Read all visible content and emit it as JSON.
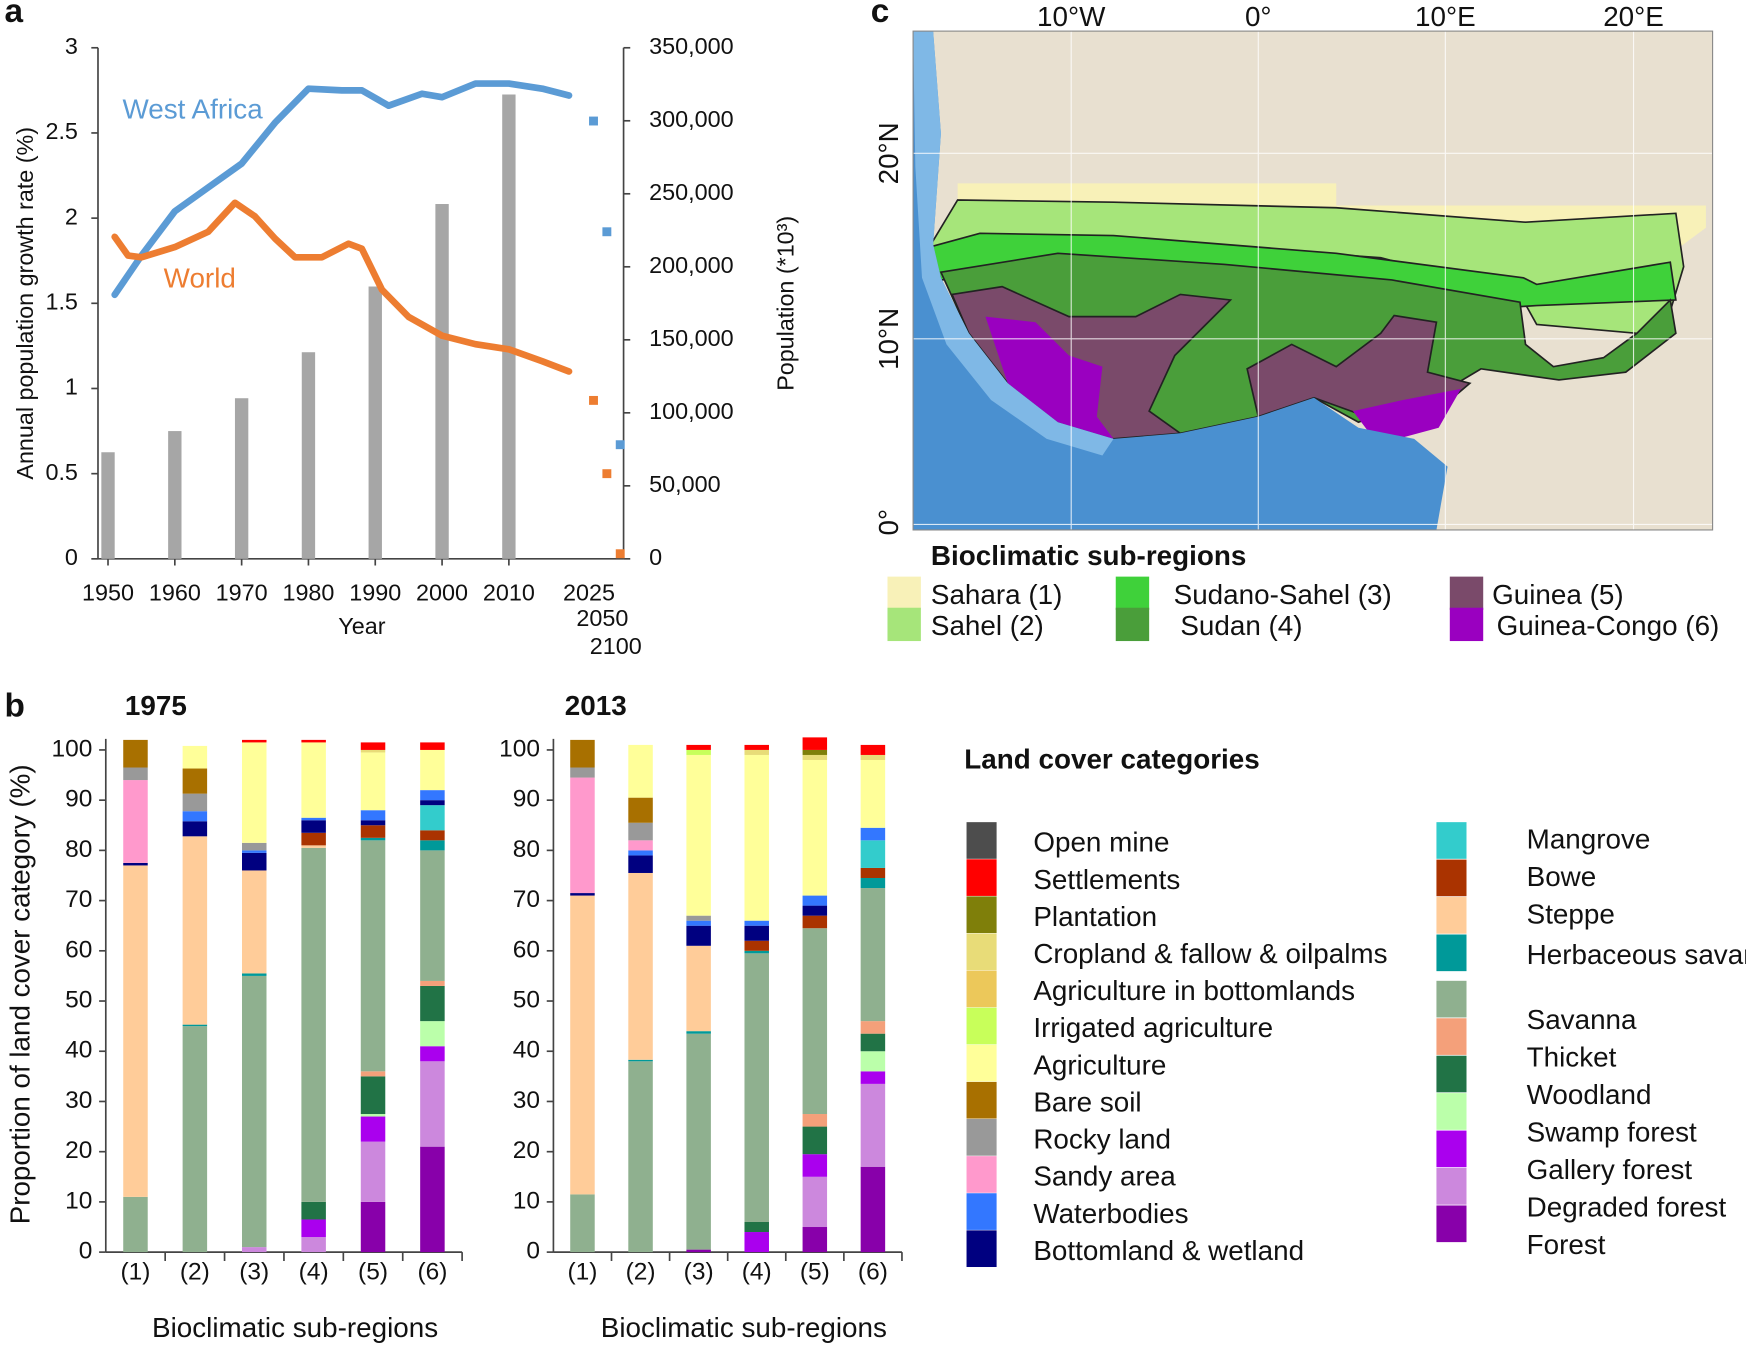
{
  "panel_labels": [
    "a",
    "b",
    "c"
  ],
  "chart_data": [
    {
      "type": "line",
      "y_title": "Annual population growth rate (%)",
      "y2_title": "Population (*10³)",
      "x_title": "Year",
      "xlim": [
        1948.5,
        2019.5
      ],
      "xticks": [
        1950,
        1960,
        1970,
        1980,
        1990,
        2000,
        2010
      ],
      "ylim": [
        0,
        3
      ],
      "yticks": [
        0,
        0.5,
        1,
        1.5,
        2,
        2.5,
        3
      ],
      "y2lim": [
        0,
        350000
      ],
      "y2ticks": [
        0,
        {
          "value": 50000,
          "label": "50,000"
        },
        {
          "value": 100000,
          "label": "100,000"
        },
        {
          "value": 150000,
          "label": "150,000"
        },
        {
          "value": 200000,
          "label": "200,000"
        },
        {
          "value": 250000,
          "label": "250,000"
        },
        {
          "value": 300000,
          "label": "300,000"
        },
        {
          "value": 350000,
          "label": "350,000"
        }
      ],
      "projection_categories": [
        "2025",
        "2050",
        "2100"
      ],
      "bars": {
        "axis": "y2",
        "color": "#a6a6a6",
        "x": [
          1950,
          1960,
          1970,
          1980,
          1990,
          2000,
          2010
        ],
        "values": [
          73000,
          87500,
          110000,
          141500,
          186500,
          243000,
          318000
        ]
      },
      "series": [
        {
          "name": "West Africa",
          "color": "#5b9bd5",
          "x": [
            1951,
            1955,
            1960,
            1965,
            1970,
            1975,
            1980,
            1985,
            1988,
            1992,
            1997,
            2000,
            2005,
            2010,
            2015,
            2019
          ],
          "values": [
            1.55,
            1.78,
            2.04,
            2.18,
            2.32,
            2.56,
            2.76,
            2.75,
            2.75,
            2.66,
            2.73,
            2.71,
            2.79,
            2.79,
            2.76,
            2.72
          ],
          "projection_values": [
            2.57,
            1.92,
            0.67
          ]
        },
        {
          "name": "World",
          "color": "#ed7d31",
          "x": [
            1951,
            1953,
            1955,
            1960,
            1965,
            1969,
            1972,
            1975,
            1978,
            1982,
            1986,
            1988,
            1991,
            1995,
            2000,
            2005,
            2010,
            2015,
            2019
          ],
          "values": [
            1.89,
            1.78,
            1.77,
            1.83,
            1.92,
            2.09,
            2.01,
            1.88,
            1.77,
            1.77,
            1.85,
            1.82,
            1.58,
            1.42,
            1.31,
            1.26,
            1.23,
            1.16,
            1.1
          ],
          "projection_values": [
            0.93,
            0.5,
            0.03
          ]
        }
      ]
    },
    {
      "type": "stacked_bar",
      "title": "1975",
      "y_title": "Proportion of land cover category (%)",
      "x_title": "Bioclimatic sub-regions",
      "legend_title": "Land cover categories",
      "categories": [
        "(1)",
        "(2)",
        "(3)",
        "(4)",
        "(5)",
        "(6)"
      ],
      "ylim": [
        0,
        100
      ],
      "yticks": [
        0,
        10,
        20,
        30,
        40,
        50,
        60,
        70,
        80,
        90,
        100
      ],
      "series": [
        {
          "name": "Open mine",
          "color": "#4d4d4d",
          "values": [
            0,
            0,
            0,
            0,
            0,
            0
          ]
        },
        {
          "name": "Settlements",
          "color": "#ff0000",
          "values": [
            0,
            0,
            0.5,
            0.5,
            1.5,
            1.5
          ]
        },
        {
          "name": "Plantation",
          "color": "#7f7f0a",
          "values": [
            0,
            0,
            0,
            0,
            0,
            0
          ]
        },
        {
          "name": "Cropland & fallow & oilpalms",
          "color": "#e8dc78",
          "values": [
            0,
            0,
            0,
            0,
            0.5,
            0
          ]
        },
        {
          "name": "Agriculture in bottomlands",
          "color": "#ecc85a",
          "values": [
            0,
            0,
            0,
            0,
            0,
            0
          ]
        },
        {
          "name": "Irrigated agriculture",
          "color": "#c8ff5a",
          "values": [
            0,
            0,
            0,
            0,
            0,
            0
          ]
        },
        {
          "name": "Agriculture",
          "color": "#ffff99",
          "values": [
            0,
            4.5,
            20,
            15,
            11.5,
            8
          ]
        },
        {
          "name": "Bare soil",
          "color": "#a87000",
          "values": [
            5.5,
            5,
            0,
            0,
            0,
            0
          ]
        },
        {
          "name": "Rocky land",
          "color": "#999999",
          "values": [
            2.5,
            3.5,
            1.5,
            0,
            0,
            0
          ]
        },
        {
          "name": "Sandy area",
          "color": "#ff99cc",
          "values": [
            16.5,
            0,
            0,
            0,
            0,
            0
          ]
        },
        {
          "name": "Waterbodies",
          "color": "#3377ff",
          "values": [
            0,
            2,
            0.5,
            0.5,
            2,
            2
          ]
        },
        {
          "name": "Bottomland & wetland",
          "color": "#000080",
          "values": [
            0.5,
            3,
            3.5,
            2.5,
            1,
            1
          ]
        },
        {
          "name": "Mangrove",
          "color": "#33cccc",
          "values": [
            0,
            0,
            0,
            0,
            0,
            5
          ]
        },
        {
          "name": "Bowe",
          "color": "#aa3300",
          "values": [
            0,
            0,
            0,
            2.5,
            2.5,
            2
          ]
        },
        {
          "name": "Steppe",
          "color": "#ffcc99",
          "values": [
            66,
            37.5,
            20.5,
            0.5,
            0,
            0
          ]
        },
        {
          "name": "Herbaceous savanna",
          "color": "#009999",
          "values": [
            0,
            0.3,
            0.5,
            0,
            0.5,
            2
          ]
        },
        {
          "name": "Savanna",
          "color": "#8fb08f",
          "values": [
            11,
            45,
            54,
            70.5,
            46,
            26
          ]
        },
        {
          "name": "Thicket",
          "color": "#f4a07a",
          "values": [
            0,
            0,
            0,
            0,
            1,
            1
          ]
        },
        {
          "name": "Woodland",
          "color": "#217346",
          "values": [
            0,
            0,
            0,
            3.5,
            7.5,
            7
          ]
        },
        {
          "name": "Swamp forest",
          "color": "#bbffaa",
          "values": [
            0,
            0,
            0,
            0,
            0.5,
            5
          ]
        },
        {
          "name": "Gallery forest",
          "color": "#aa00ee",
          "values": [
            0,
            0,
            0,
            3.5,
            5,
            3
          ]
        },
        {
          "name": "Degraded forest",
          "color": "#cc88dd",
          "values": [
            0,
            0,
            1,
            3,
            12,
            17
          ]
        },
        {
          "name": "Forest",
          "color": "#8800aa",
          "values": [
            0,
            0,
            0,
            0,
            10,
            21
          ]
        }
      ]
    },
    {
      "type": "stacked_bar",
      "title": "2013",
      "x_title": "Bioclimatic sub-regions",
      "categories": [
        "(1)",
        "(2)",
        "(3)",
        "(4)",
        "(5)",
        "(6)"
      ],
      "ylim": [
        0,
        100
      ],
      "yticks": [
        0,
        10,
        20,
        30,
        40,
        50,
        60,
        70,
        80,
        90,
        100
      ],
      "series": [
        {
          "color": "#4d4d4d",
          "values": [
            0,
            0,
            0,
            0,
            0,
            0
          ]
        },
        {
          "color": "#ff0000",
          "values": [
            0,
            0,
            1,
            1,
            2.5,
            2
          ]
        },
        {
          "color": "#7f7f0a",
          "values": [
            0,
            0,
            0,
            0,
            1,
            0
          ]
        },
        {
          "color": "#e8dc78",
          "values": [
            0,
            0,
            0,
            1,
            1,
            1
          ]
        },
        {
          "color": "#ecc85a",
          "values": [
            0,
            0,
            0,
            0,
            0,
            0
          ]
        },
        {
          "color": "#c8ff5a",
          "values": [
            0,
            0,
            1,
            0,
            0,
            0
          ]
        },
        {
          "color": "#ffff99",
          "values": [
            0,
            10.5,
            32,
            33,
            27,
            13.5
          ]
        },
        {
          "color": "#a87000",
          "values": [
            5.5,
            5,
            0,
            0,
            0,
            0
          ]
        },
        {
          "color": "#999999",
          "values": [
            2,
            3.5,
            1,
            0,
            0,
            0
          ]
        },
        {
          "color": "#ff99cc",
          "values": [
            23,
            2,
            0,
            0,
            0,
            0
          ]
        },
        {
          "color": "#3377ff",
          "values": [
            0,
            1,
            1,
            1,
            2,
            2.5
          ]
        },
        {
          "color": "#000080",
          "values": [
            0.5,
            3.5,
            4,
            3,
            2,
            0
          ]
        },
        {
          "color": "#33cccc",
          "values": [
            0,
            0,
            0,
            0,
            0,
            5.5
          ]
        },
        {
          "color": "#aa3300",
          "values": [
            0,
            0,
            0,
            2,
            2.5,
            2
          ]
        },
        {
          "color": "#ffcc99",
          "values": [
            59.5,
            37.2,
            17,
            0,
            0,
            0
          ]
        },
        {
          "color": "#009999",
          "values": [
            0,
            0.3,
            0.5,
            0.5,
            0,
            2
          ]
        },
        {
          "color": "#8fb08f",
          "values": [
            11.5,
            38,
            43,
            53.5,
            37,
            26.5
          ]
        },
        {
          "color": "#f4a07a",
          "values": [
            0,
            0,
            0,
            0,
            2.5,
            2.5
          ]
        },
        {
          "color": "#217346",
          "values": [
            0,
            0,
            0,
            2,
            5.5,
            3.5
          ]
        },
        {
          "color": "#bbffaa",
          "values": [
            0,
            0,
            0,
            0,
            0,
            4
          ]
        },
        {
          "color": "#aa00ee",
          "values": [
            0,
            0,
            0,
            4,
            4.5,
            2.5
          ]
        },
        {
          "color": "#cc88dd",
          "values": [
            0,
            0,
            0,
            0,
            10,
            16.5
          ]
        },
        {
          "color": "#8800aa",
          "values": [
            0,
            0,
            0.5,
            0,
            5,
            17
          ]
        }
      ]
    }
  ],
  "map": {
    "title": "Bioclimatic sub-regions",
    "lon_labels": [
      "10°W",
      "0°",
      "10°E",
      "20°E"
    ],
    "lat_labels": [
      "20°N",
      "10°N",
      "0°"
    ],
    "regions": [
      {
        "name": "Sahara (1)",
        "color": "#f8f1b8"
      },
      {
        "name": "Sahel (2)",
        "color": "#a6e57a"
      },
      {
        "name": "Sudano-Sahel (3)",
        "color": "#3fd13a"
      },
      {
        "name": "Sudan (4)",
        "color": "#4a9e3a"
      },
      {
        "name": "Guinea (5)",
        "color": "#7a4a6a"
      },
      {
        "name": "Guinea-Congo (6)",
        "color": "#9a00c0"
      }
    ]
  }
}
